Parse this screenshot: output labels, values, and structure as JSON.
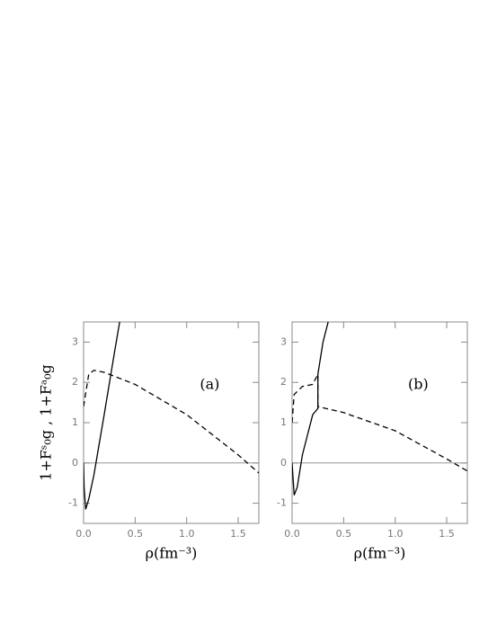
{
  "ylabel": "1+Fˢ₀g , 1+Fᵃ₀g",
  "chart_data": [
    {
      "type": "line",
      "label": "(a)",
      "xlabel": "ρ(fm⁻³)",
      "xlim": [
        0,
        1.7
      ],
      "ylim": [
        -1.5,
        3.5
      ],
      "xticks": [
        {
          "value": 0,
          "label": "0.0"
        },
        {
          "value": 0.5,
          "label": "0.5"
        },
        {
          "value": 1,
          "label": "1.0"
        },
        {
          "value": 1.5,
          "label": "1.5"
        }
      ],
      "yticks": [
        -1,
        0,
        1,
        2,
        3
      ],
      "series": [
        {
          "color": "#000",
          "style": "solid",
          "x": [
            0,
            0.005,
            0.02,
            0.05,
            0.1,
            0.2,
            0.3,
            0.35
          ],
          "values": [
            0,
            -0.6,
            -1.15,
            -0.9,
            -0.3,
            1.2,
            2.75,
            3.5
          ]
        },
        {
          "color": "#000",
          "style": "dashed",
          "x": [
            0,
            0.05,
            0.1,
            0.2,
            0.5,
            1.0,
            1.5,
            1.7
          ],
          "values": [
            1.4,
            2.2,
            2.3,
            2.25,
            1.95,
            1.2,
            0.2,
            -0.25
          ]
        }
      ]
    },
    {
      "type": "line",
      "label": "(b)",
      "xlabel": "ρ(fm⁻³)",
      "xlim": [
        0,
        1.7
      ],
      "ylim": [
        -1.5,
        3.5
      ],
      "xticks": [
        {
          "value": 0,
          "label": "0.0"
        },
        {
          "value": 0.5,
          "label": "0.5"
        },
        {
          "value": 1,
          "label": "1.0"
        },
        {
          "value": 1.5,
          "label": "1.5"
        }
      ],
      "yticks": [
        -1,
        0,
        1,
        2,
        3
      ],
      "series": [
        {
          "color": "#000",
          "style": "solid",
          "x": [
            0,
            0.02,
            0.05,
            0.1,
            0.2,
            0.25,
            0.25,
            0.3,
            0.35
          ],
          "values": [
            0,
            -0.8,
            -0.6,
            0.2,
            1.2,
            1.35,
            2.2,
            3.0,
            3.5
          ]
        },
        {
          "color": "#000",
          "style": "dashed",
          "x": [
            0,
            0.02,
            0.1,
            0.2,
            0.25,
            0.25,
            0.5,
            1.0,
            1.5,
            1.7
          ],
          "values": [
            1.0,
            1.7,
            1.9,
            1.95,
            2.2,
            1.4,
            1.25,
            0.8,
            0.1,
            -0.2
          ]
        }
      ]
    }
  ]
}
